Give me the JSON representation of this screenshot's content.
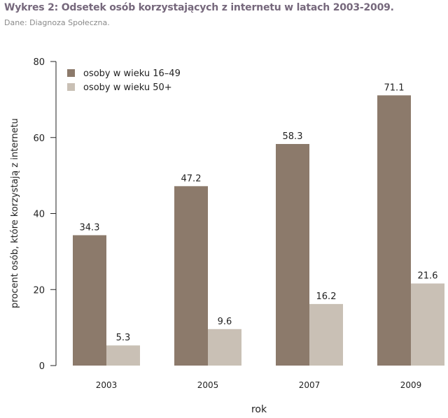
{
  "title": "Wykres 2: Odsetek osób korzystających z internetu w latach 2003-2009.",
  "subtitle": "Dane: Diagnoza Społeczna.",
  "colors": {
    "series1": "#8c7a6b",
    "series2": "#c9c0b5",
    "title": "#76687c"
  },
  "chart_data": {
    "type": "bar",
    "categories": [
      "2003",
      "2005",
      "2007",
      "2009"
    ],
    "series": [
      {
        "name": "osoby w wieku 16–49",
        "values": [
          34.3,
          47.2,
          58.3,
          71.1
        ],
        "labels": [
          "34.3",
          "47.2",
          "58.3",
          "71.1"
        ]
      },
      {
        "name": "osoby w wieku 50+",
        "values": [
          5.3,
          9.6,
          16.2,
          21.6
        ],
        "labels": [
          "5.3",
          "9.6",
          "16.2",
          "21.6"
        ]
      }
    ],
    "xlabel": "rok",
    "ylabel": "procent osób, które korzystają z internetu",
    "ylim": [
      0,
      80
    ],
    "yticks": [
      "0",
      "20",
      "40",
      "60",
      "80"
    ],
    "grid": false,
    "legend": "top-left"
  }
}
